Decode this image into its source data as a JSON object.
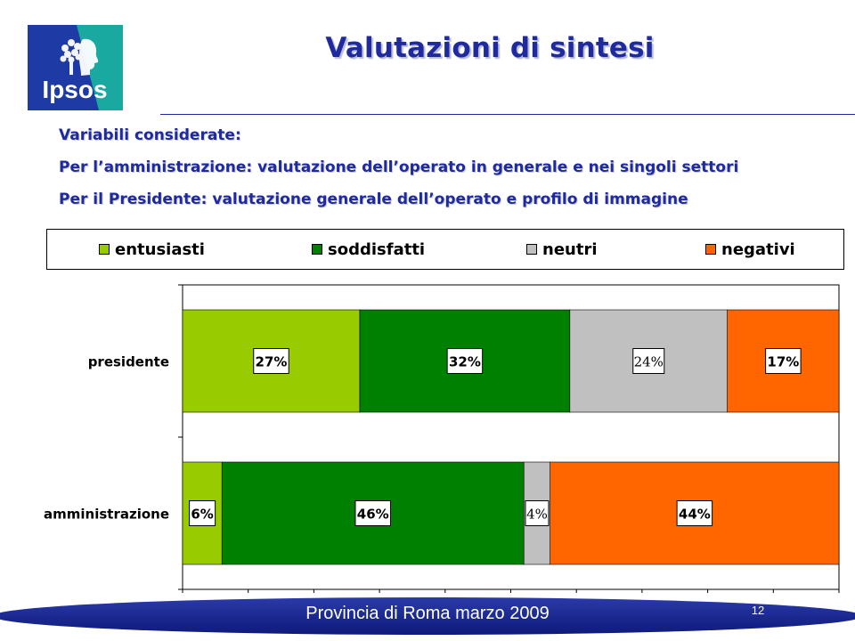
{
  "logo": {
    "text": "Ipsos"
  },
  "title": "Valutazioni di sintesi",
  "intro": [
    "Variabili considerate:",
    "Per l’amministrazione: valutazione dell’operato in generale e nei singoli settori",
    "Per il Presidente: valutazione generale dell’operato e profilo di immagine"
  ],
  "chart_data": {
    "type": "bar",
    "orientation": "horizontal",
    "stacked": true,
    "categories": [
      "presidente",
      "amministrazione"
    ],
    "series": [
      {
        "name": "entusiasti",
        "values": [
          27,
          6
        ]
      },
      {
        "name": "soddisfatti",
        "values": [
          32,
          46
        ]
      },
      {
        "name": "neutri",
        "values": [
          24,
          4
        ]
      },
      {
        "name": "negativi",
        "values": [
          17,
          44
        ]
      }
    ],
    "data_labels": [
      [
        "27%",
        "32%",
        "24%",
        "17%"
      ],
      [
        "6%",
        "46%",
        "4%",
        "44%"
      ]
    ],
    "colors": [
      "#99cc00",
      "#008000",
      "#c0c0c0",
      "#ff6600"
    ],
    "xlim": [
      0,
      100
    ],
    "legend_position": "top"
  },
  "footer": {
    "text": "Provincia di Roma marzo 2009",
    "page_number": "12"
  }
}
